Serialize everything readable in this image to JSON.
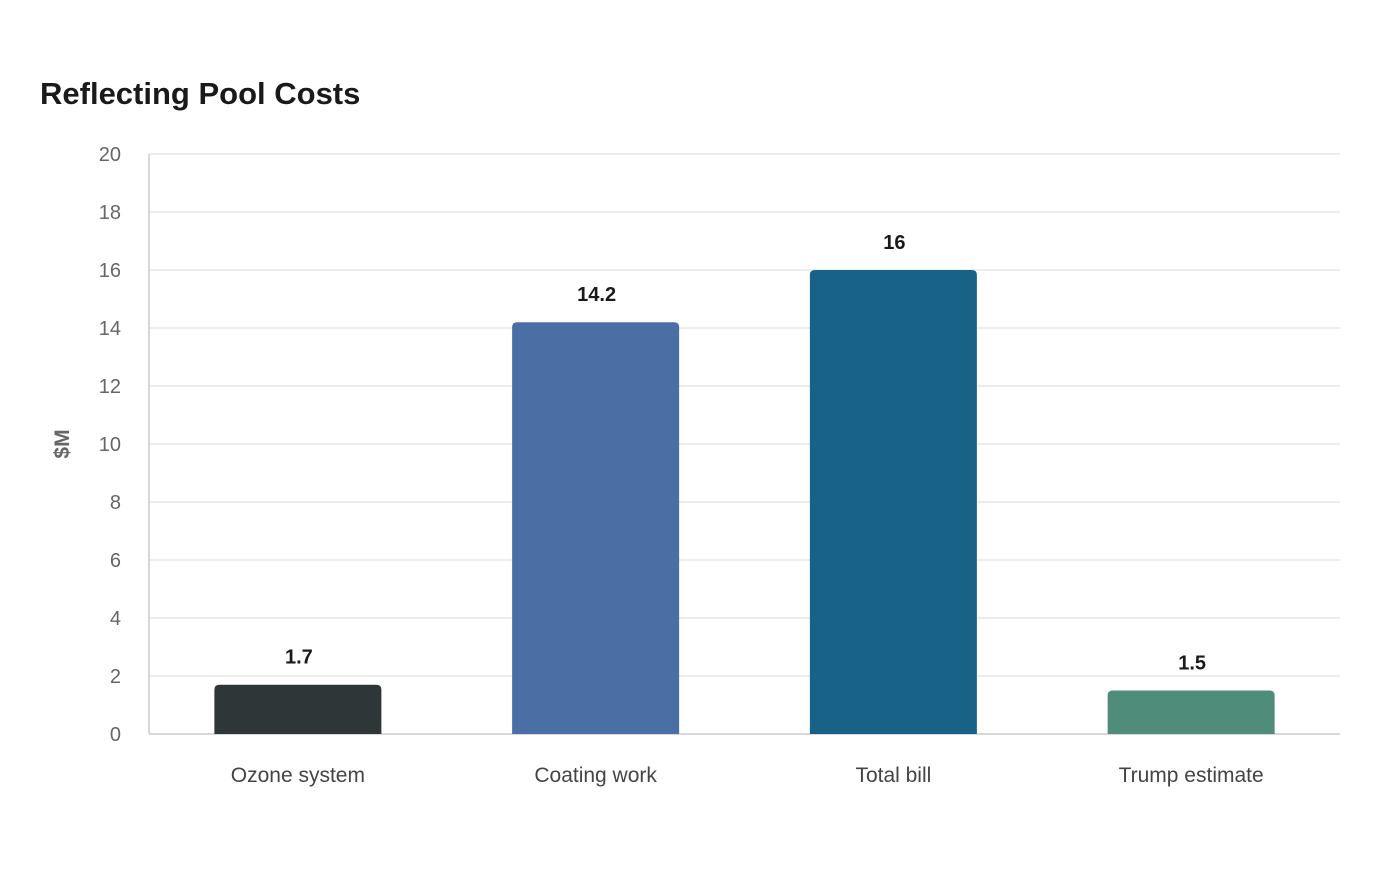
{
  "chart_data": {
    "type": "bar",
    "title": "Reflecting Pool Costs",
    "xlabel": "",
    "ylabel": "$M",
    "ylim": [
      0,
      20
    ],
    "yticks": [
      0,
      2,
      4,
      6,
      8,
      10,
      12,
      14,
      16,
      18,
      20
    ],
    "grid": true,
    "categories": [
      "Ozone system",
      "Coating work",
      "Total bill",
      "Trump estimate"
    ],
    "values": [
      1.7,
      14.2,
      16,
      1.5
    ],
    "value_labels": [
      "1.7",
      "14.2",
      "16",
      "1.5"
    ],
    "colors": [
      "#2e3638",
      "#4a6fa5",
      "#186287",
      "#4f8c7a"
    ]
  }
}
